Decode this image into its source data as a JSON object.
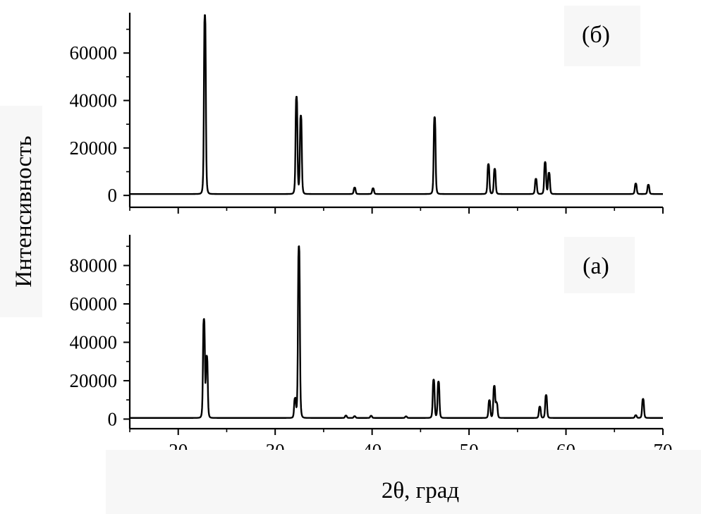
{
  "chart_data": [
    {
      "type": "line",
      "panel_label": "(б)",
      "ylabel": "Интенсивность",
      "xlabel": "2θ, град",
      "xlim": [
        15,
        70
      ],
      "ylim": [
        -5000,
        77000
      ],
      "xticks": [
        20,
        30,
        40,
        50,
        60,
        70
      ],
      "yticks": [
        0,
        20000,
        40000,
        60000
      ],
      "baseline": 600,
      "peaks": [
        {
          "x": 22.75,
          "y": 76000
        },
        {
          "x": 32.2,
          "y": 41500
        },
        {
          "x": 32.65,
          "y": 33500
        },
        {
          "x": 38.2,
          "y": 3300
        },
        {
          "x": 40.1,
          "y": 3000
        },
        {
          "x": 46.45,
          "y": 33000
        },
        {
          "x": 52.0,
          "y": 13200
        },
        {
          "x": 52.65,
          "y": 11200
        },
        {
          "x": 56.9,
          "y": 7000
        },
        {
          "x": 57.85,
          "y": 14000
        },
        {
          "x": 58.25,
          "y": 9500
        },
        {
          "x": 67.2,
          "y": 5000
        },
        {
          "x": 68.5,
          "y": 4500
        }
      ]
    },
    {
      "type": "line",
      "panel_label": "(а)",
      "xlabel": "2θ, град",
      "xlim": [
        15,
        70
      ],
      "ylim": [
        -5000,
        96000
      ],
      "xticks": [
        20,
        30,
        40,
        50,
        60,
        70
      ],
      "yticks": [
        0,
        20000,
        40000,
        60000,
        80000
      ],
      "baseline": 600,
      "peaks": [
        {
          "x": 22.65,
          "y": 51500
        },
        {
          "x": 22.95,
          "y": 32000
        },
        {
          "x": 32.05,
          "y": 10500
        },
        {
          "x": 32.45,
          "y": 90000
        },
        {
          "x": 37.3,
          "y": 1800
        },
        {
          "x": 38.2,
          "y": 1500
        },
        {
          "x": 39.9,
          "y": 1700
        },
        {
          "x": 43.5,
          "y": 1400
        },
        {
          "x": 46.35,
          "y": 20500
        },
        {
          "x": 46.85,
          "y": 19500
        },
        {
          "x": 52.1,
          "y": 9800
        },
        {
          "x": 52.6,
          "y": 17000
        },
        {
          "x": 52.85,
          "y": 8000
        },
        {
          "x": 57.3,
          "y": 6500
        },
        {
          "x": 57.95,
          "y": 12500
        },
        {
          "x": 67.2,
          "y": 2000
        },
        {
          "x": 67.95,
          "y": 10500
        }
      ]
    }
  ]
}
